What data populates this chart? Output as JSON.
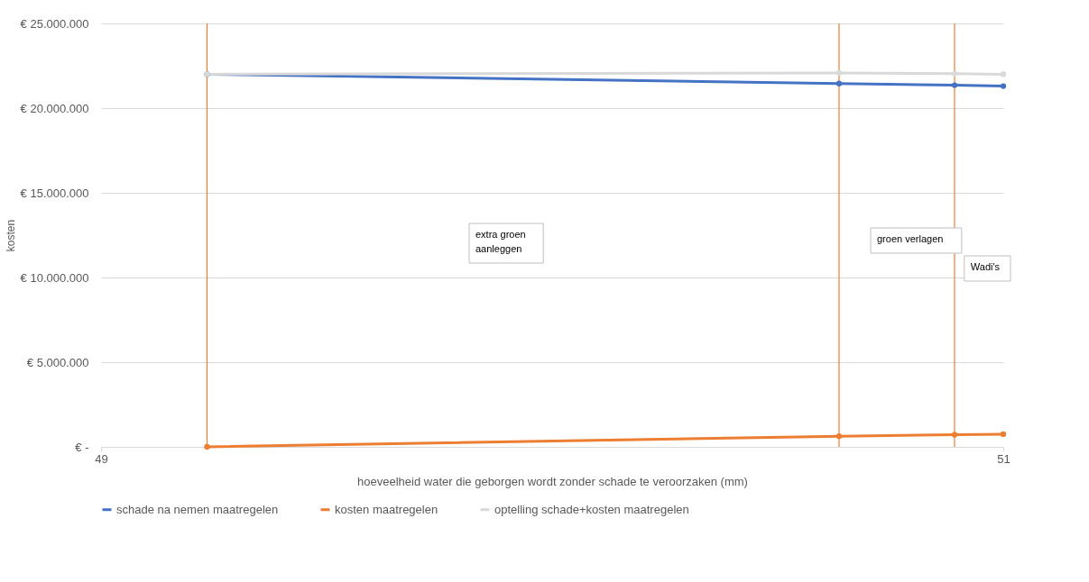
{
  "chart_data": {
    "type": "line",
    "xlabel": "hoeveelheid water die geborgen wordt zonder schade te veroorzaken (mm)",
    "ylabel": "kosten",
    "x": [
      49.235,
      50.636,
      50.892,
      51
    ],
    "series": [
      {
        "name": "schade na nemen maatregelen",
        "color": "#4472c4",
        "values": [
          22000000,
          21450000,
          21350000,
          21300000
        ]
      },
      {
        "name": "kosten maatregelen",
        "color": "#ed7d31",
        "values": [
          0,
          630000,
          720000,
          750000
        ]
      },
      {
        "name": "optelling schade+kosten maatregelen",
        "color": "#d9d9d9",
        "values": [
          22000000,
          22080000,
          22030000,
          22000000
        ]
      }
    ],
    "xlim": [
      49,
      51
    ],
    "xticks": [
      49,
      51
    ],
    "ylim": [
      0,
      25000000
    ],
    "yticks": [
      {
        "value": 0,
        "label": "€ -"
      },
      {
        "value": 5000000,
        "label": "€ 5.000.000"
      },
      {
        "value": 10000000,
        "label": "€ 10.000.000"
      },
      {
        "value": 15000000,
        "label": "€ 15.000.000"
      },
      {
        "value": 20000000,
        "label": "€ 20.000.000"
      },
      {
        "value": 25000000,
        "label": "€ 25.000.000"
      }
    ],
    "ref_lines": [
      {
        "axis": "x",
        "value": 49.235,
        "color": "#ed7d31"
      },
      {
        "axis": "x",
        "value": 50.636,
        "color": "#ed7d31"
      },
      {
        "axis": "x",
        "value": 50.892,
        "color": "#ed7d31"
      }
    ],
    "annotations": [
      "extra groen\naanleggen",
      "groen verlagen",
      "Wadi's"
    ],
    "grid": "y",
    "legend": "bottom",
    "marker": "circle",
    "line_style": "solid"
  }
}
